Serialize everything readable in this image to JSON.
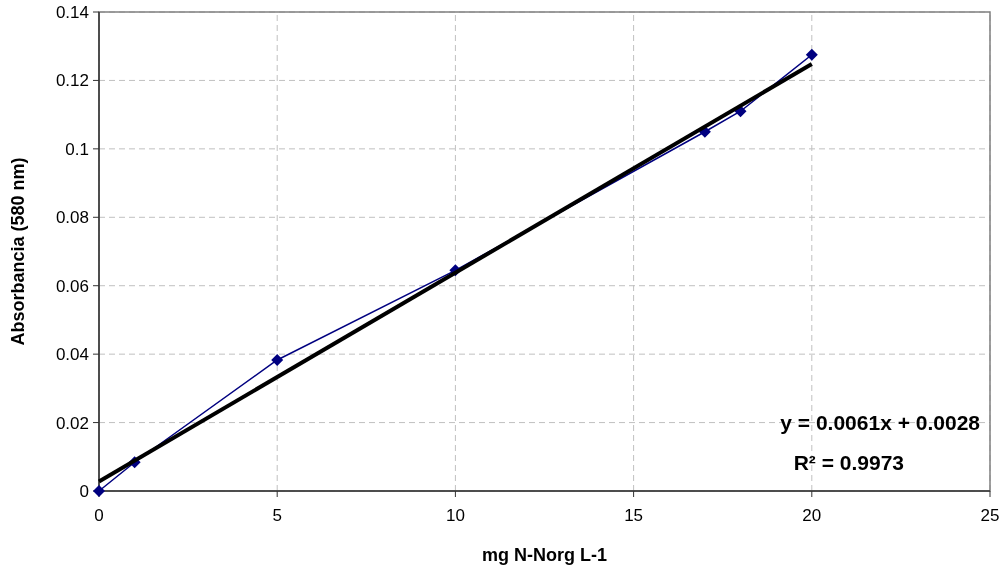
{
  "chart_data": {
    "type": "line",
    "xlabel": "mg N-Norg L-1",
    "ylabel": "Absorbancia (580 nm)",
    "series": [
      {
        "color": "#000080",
        "marker": "diamond",
        "x": [
          0,
          1,
          5,
          10,
          17,
          18,
          20
        ],
        "values": [
          0,
          0.0084,
          0.0383,
          0.0645,
          0.105,
          0.111,
          0.1275
        ]
      },
      {
        "color": "#000000",
        "marker": "none",
        "x": [
          0,
          20
        ],
        "values": [
          0.0028,
          0.1248
        ]
      }
    ],
    "annotations": [
      "y = 0.0061x + 0.0028",
      "R² = 0.9973"
    ],
    "xlim": [
      0,
      25
    ],
    "xticks": [
      0,
      5,
      10,
      15,
      20,
      25
    ],
    "ylim": [
      0,
      0.14
    ],
    "yticks": [
      0,
      0.02,
      0.04,
      0.06,
      0.08,
      0.1,
      0.12,
      0.14
    ],
    "grid": true
  }
}
